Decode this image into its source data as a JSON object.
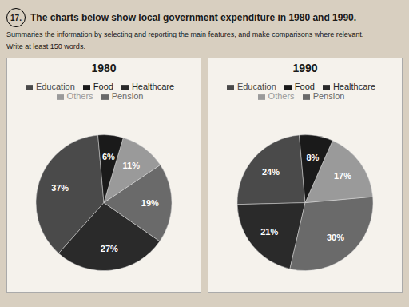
{
  "title": "The charts below show local government expenditure in 1980 and 1990.",
  "subtitle": [
    "Summaries the information by selecting and reporting the main features, and make comparisons where relevant.",
    "Write at least 150 words."
  ],
  "annotations": [
    "17."
  ],
  "chart_data": [
    {
      "type": "pie",
      "title": "1980",
      "categories": [
        "Education",
        "Healthcare",
        "Pension",
        "Others",
        "Food"
      ],
      "values": [
        37,
        27,
        19,
        11,
        6
      ],
      "value_labels": [
        "37%",
        "27%",
        "19%",
        "11%",
        "6%"
      ],
      "colors": [
        "#4a4a4a",
        "#2a2a2a",
        "#6a6a6a",
        "#9a9a9a",
        "#1a1a1a"
      ],
      "data_labels": true,
      "legend": "top"
    },
    {
      "type": "pie",
      "title": "1990",
      "categories": [
        "Education",
        "Healthcare",
        "Pension",
        "Others",
        "Food"
      ],
      "values": [
        24,
        21,
        30,
        17,
        8
      ],
      "value_labels": [
        "24%",
        "21%",
        "30%",
        "17%",
        "8%"
      ],
      "colors": [
        "#4a4a4a",
        "#2a2a2a",
        "#6a6a6a",
        "#9a9a9a",
        "#1a1a1a"
      ],
      "data_labels": true,
      "legend": "top"
    }
  ]
}
